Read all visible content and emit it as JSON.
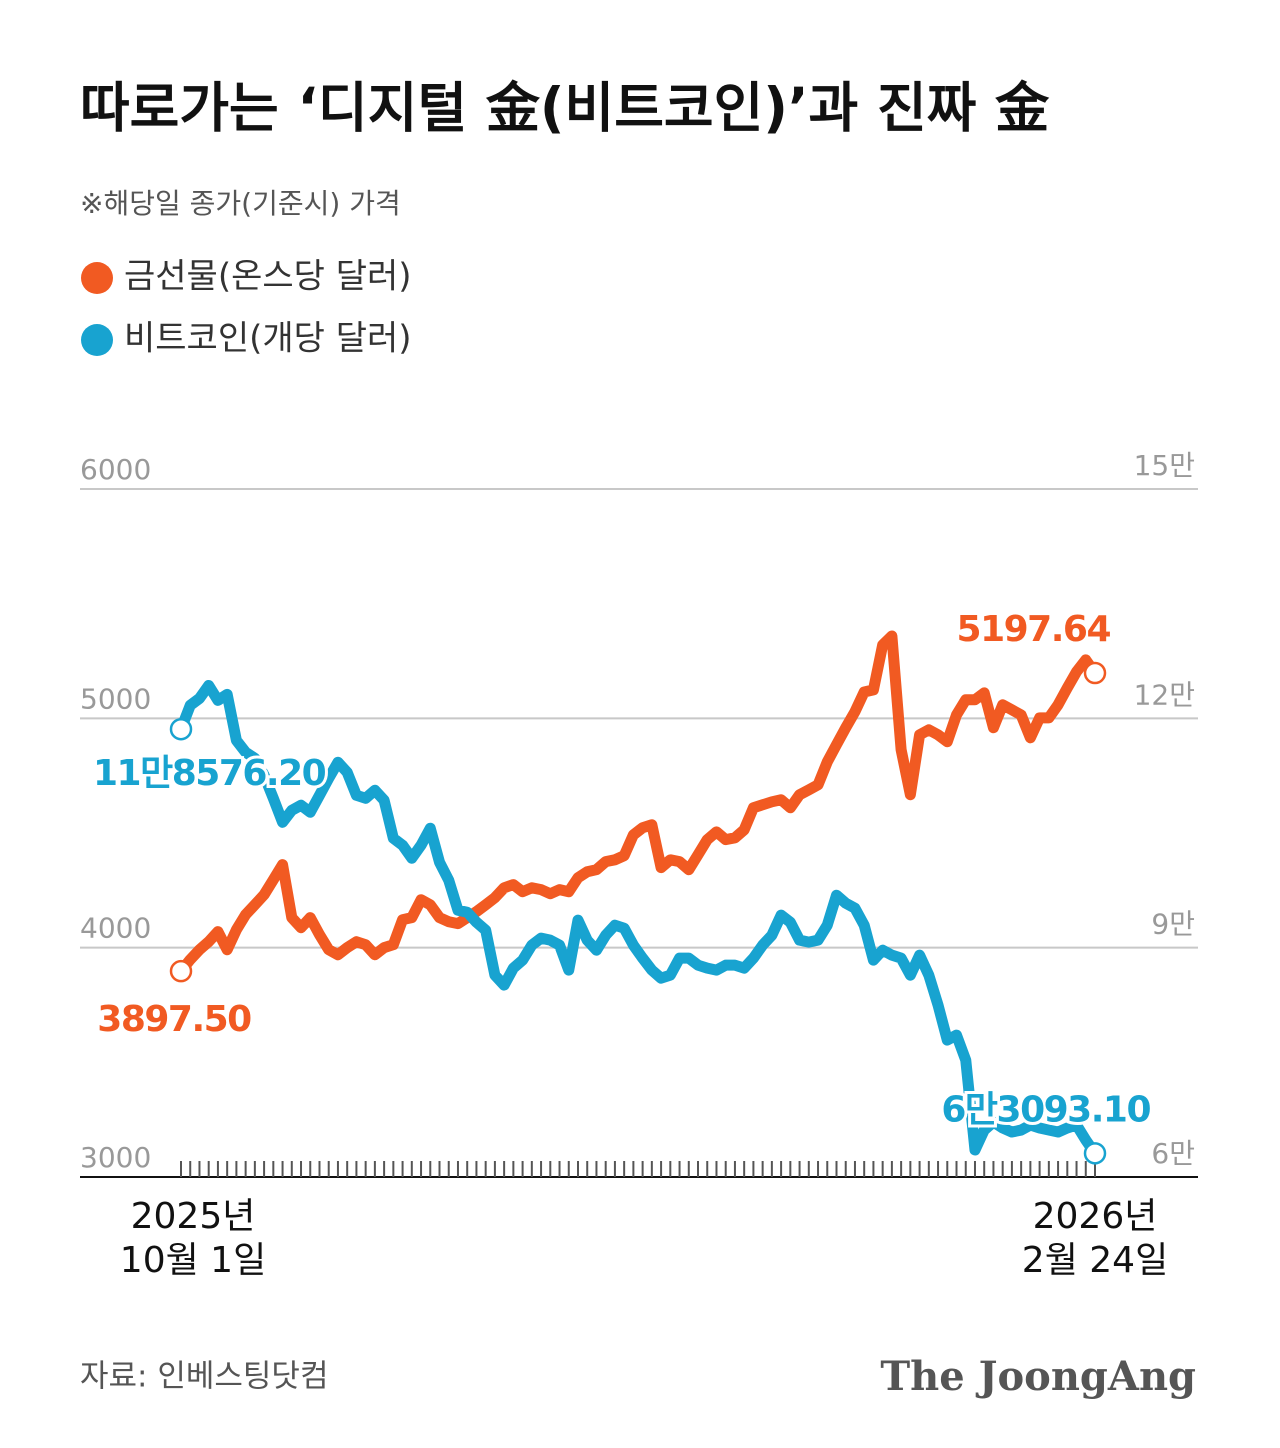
{
  "chart_data": {
    "type": "line",
    "title": "따로가는 ‘디지털 金(비트코인)’과 진짜 金",
    "subtitle": "※해당일 종가(기준시) 가격",
    "source": "자료: 인베스팅닷컴",
    "brand": "The JoongAng",
    "categories": [
      "2025년\n10월 1일",
      null,
      null,
      null,
      null,
      null,
      null,
      null,
      null,
      null,
      null,
      null,
      null,
      null,
      null,
      null,
      null,
      null,
      null,
      null,
      null,
      null,
      null,
      null,
      null,
      null,
      null,
      null,
      null,
      null,
      null,
      null,
      null,
      null,
      null,
      null,
      null,
      null,
      null,
      null,
      null,
      null,
      null,
      null,
      null,
      null,
      null,
      null,
      null,
      null,
      null,
      null,
      null,
      null,
      null,
      null,
      null,
      null,
      null,
      null,
      null,
      null,
      null,
      null,
      null,
      null,
      null,
      null,
      null,
      null,
      null,
      null,
      null,
      null,
      null,
      null,
      null,
      null,
      null,
      null,
      null,
      null,
      null,
      null,
      null,
      null,
      null,
      null,
      null,
      null,
      null,
      null,
      null,
      null,
      null,
      null,
      null,
      null,
      null,
      "2026년\n2월 24일"
    ],
    "ylim": [
      3000,
      6000
    ],
    "yticks": [
      3000,
      4000,
      5000,
      6000
    ],
    "y2lim": [
      60000,
      150000
    ],
    "y2ticks": [
      {
        "value": 60000,
        "label": "6만"
      },
      {
        "value": 90000,
        "label": "9만"
      },
      {
        "value": 120000,
        "label": "12만"
      },
      {
        "value": 150000,
        "label": "15만"
      }
    ],
    "grid": true,
    "legend": "top-left",
    "series": [
      {
        "name": "금선물(온스당 달러)",
        "color": "#f15a22",
        "values": [
          3897.5,
          3948,
          3991,
          4026,
          4070,
          3991,
          4078,
          4144,
          4187,
          4231,
          4296,
          4362,
          4131,
          4087,
          4131,
          4057,
          3991,
          3969,
          4000,
          4026,
          4013,
          3969,
          4000,
          4013,
          4122,
          4131,
          4209,
          4187,
          4131,
          4113,
          4105,
          4131,
          4157,
          4187,
          4218,
          4261,
          4275,
          4244,
          4261,
          4253,
          4235,
          4253,
          4244,
          4305,
          4331,
          4340,
          4375,
          4383,
          4401,
          4492,
          4523,
          4536,
          4349,
          4383,
          4375,
          4340,
          4405,
          4471,
          4505,
          4471,
          4479,
          4514,
          4610,
          4623,
          4636,
          4645,
          4610,
          4667,
          4688,
          4710,
          4810,
          4885,
          4959,
          5029,
          5115,
          5124,
          5320,
          5359,
          4863,
          4667,
          4928,
          4950,
          4928,
          4898,
          5015,
          5081,
          5081,
          5111,
          4959,
          5059,
          5037,
          5015,
          4915,
          5002,
          5002,
          5059,
          5133,
          5203,
          5255,
          5197.64
        ],
        "value_labels": [
          "3897.50",
          null,
          null,
          null,
          null,
          null,
          null,
          null,
          null,
          null,
          null,
          null,
          null,
          null,
          null,
          null,
          null,
          null,
          null,
          null,
          null,
          null,
          null,
          null,
          null,
          null,
          null,
          null,
          null,
          null,
          null,
          null,
          null,
          null,
          null,
          null,
          null,
          null,
          null,
          null,
          null,
          null,
          null,
          null,
          null,
          null,
          null,
          null,
          null,
          null,
          null,
          null,
          null,
          null,
          null,
          null,
          null,
          null,
          null,
          null,
          null,
          null,
          null,
          null,
          null,
          null,
          null,
          null,
          null,
          null,
          null,
          null,
          null,
          null,
          null,
          null,
          null,
          null,
          null,
          null,
          null,
          null,
          null,
          null,
          null,
          null,
          null,
          null,
          null,
          null,
          null,
          null,
          null,
          null,
          null,
          null,
          null,
          null,
          null,
          "5197.64"
        ]
      },
      {
        "name": "비트코인(개당 달러)",
        "color": "#18a3d0",
        "axis": "y2",
        "values": [
          118576.2,
          121700,
          122600,
          124300,
          122350,
          123140,
          117120,
          115560,
          114770,
          112550,
          109540,
          106400,
          107970,
          108630,
          107710,
          109930,
          112160,
          114250,
          112940,
          109930,
          109540,
          110590,
          109280,
          104310,
          103400,
          101700,
          103400,
          105620,
          101180,
          98820,
          94900,
          94640,
          93330,
          92290,
          86400,
          85100,
          87320,
          88370,
          90330,
          91240,
          90980,
          90330,
          87060,
          93600,
          90980,
          89670,
          91630,
          92940,
          92550,
          90330,
          88630,
          87060,
          86010,
          86400,
          88630,
          88630,
          87710,
          87320,
          87060,
          87710,
          87710,
          87320,
          88630,
          90330,
          91630,
          94250,
          93330,
          90980,
          90720,
          90980,
          92940,
          96860,
          95820,
          95160,
          92940,
          88370,
          89670,
          89020,
          88630,
          86400,
          89020,
          86400,
          82480,
          77910,
          78560,
          75290,
          63530,
          66140,
          67190,
          66410,
          65880,
          66140,
          66800,
          66410,
          66140,
          65880,
          66410,
          66800,
          64840,
          63093.1
        ],
        "value_labels": [
          "11만8576.20",
          null,
          null,
          null,
          null,
          null,
          null,
          null,
          null,
          null,
          null,
          null,
          null,
          null,
          null,
          null,
          null,
          null,
          null,
          null,
          null,
          null,
          null,
          null,
          null,
          null,
          null,
          null,
          null,
          null,
          null,
          null,
          null,
          null,
          null,
          null,
          null,
          null,
          null,
          null,
          null,
          null,
          null,
          null,
          null,
          null,
          null,
          null,
          null,
          null,
          null,
          null,
          null,
          null,
          null,
          null,
          null,
          null,
          null,
          null,
          null,
          null,
          null,
          null,
          null,
          null,
          null,
          null,
          null,
          null,
          null,
          null,
          null,
          null,
          null,
          null,
          null,
          null,
          null,
          null,
          null,
          null,
          null,
          null,
          null,
          null,
          null,
          null,
          null,
          null,
          null,
          null,
          null,
          null,
          null,
          null,
          null,
          null,
          null,
          "6만3093.10"
        ]
      }
    ]
  }
}
